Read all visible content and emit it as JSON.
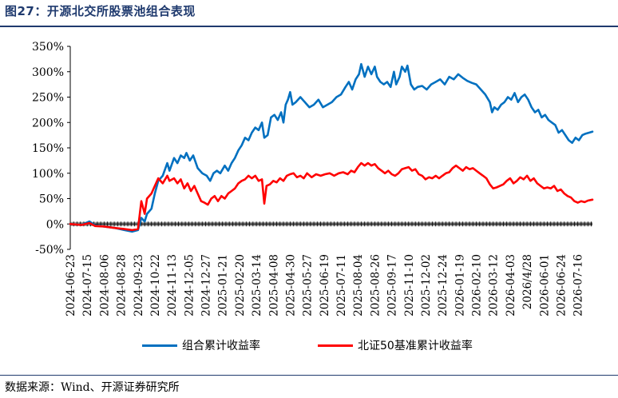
{
  "header": {
    "title": "图27：开源北交所股票池组合表现"
  },
  "footer": {
    "source": "数据来源：Wind、开源证券研究所"
  },
  "colors": {
    "portfolio": "#0070c0",
    "index": "#ff0000",
    "accent": "#1f3a6e"
  },
  "chart_data": {
    "type": "line",
    "title": "",
    "xlabel": "",
    "ylabel": "",
    "ylim": [
      -0.5,
      3.5
    ],
    "yticks": [
      -0.5,
      0,
      0.5,
      1.0,
      1.5,
      2.0,
      2.5,
      3.0,
      3.5
    ],
    "ytick_labels": [
      "-50%",
      "0%",
      "50%",
      "100%",
      "150%",
      "200%",
      "250%",
      "300%",
      "350%"
    ],
    "grid": false,
    "legend": "bottom",
    "x_tick_labels": [
      "2024-06-23",
      "2024-07-15",
      "2024-08-06",
      "2024-08-28",
      "2024-09-23",
      "2024-10-22",
      "2024-11-13",
      "2024-12-05",
      "2024-12-27",
      "2025-01-21",
      "2025-02-20",
      "2025-03-14",
      "2025-04-08",
      "2025-04-30",
      "2025-05-27",
      "2025-06-19",
      "2025-07-11",
      "2025-08-04",
      "2025-08-26",
      "2025-09-17",
      "2025-11-10",
      "2025-12-02",
      "2025-12-24",
      "2026-01-19",
      "2026-02-10",
      "2026-03-12",
      "2026-04-03",
      "2026/4/28",
      "2026-06-01",
      "2026-06-24",
      "2026-07-16"
    ],
    "x_tick_index": [
      0,
      15,
      30,
      45,
      60,
      75,
      90,
      105,
      120,
      135,
      150,
      165,
      180,
      195,
      210,
      225,
      240,
      255,
      270,
      285,
      300,
      315,
      330,
      345,
      360,
      375,
      390,
      405,
      420,
      435,
      450
    ],
    "x_max": 463,
    "series": [
      {
        "name": "组合累计收益率",
        "color": "#0070c0",
        "points": [
          [
            0,
            0.0
          ],
          [
            10,
            -0.02
          ],
          [
            17,
            0.05
          ],
          [
            22,
            -0.03
          ],
          [
            30,
            -0.05
          ],
          [
            40,
            -0.08
          ],
          [
            48,
            -0.12
          ],
          [
            55,
            -0.15
          ],
          [
            60,
            -0.12
          ],
          [
            63,
            0.12
          ],
          [
            66,
            0.05
          ],
          [
            68,
            0.2
          ],
          [
            72,
            0.3
          ],
          [
            75,
            0.6
          ],
          [
            78,
            0.85
          ],
          [
            82,
            0.95
          ],
          [
            86,
            1.2
          ],
          [
            88,
            1.05
          ],
          [
            92,
            1.3
          ],
          [
            95,
            1.2
          ],
          [
            98,
            1.35
          ],
          [
            101,
            1.3
          ],
          [
            103,
            1.4
          ],
          [
            106,
            1.25
          ],
          [
            109,
            1.35
          ],
          [
            113,
            1.1
          ],
          [
            117,
            1.0
          ],
          [
            121,
            0.95
          ],
          [
            124,
            0.85
          ],
          [
            127,
            1.0
          ],
          [
            130,
            1.05
          ],
          [
            133,
            1.0
          ],
          [
            137,
            1.15
          ],
          [
            140,
            1.05
          ],
          [
            143,
            1.2
          ],
          [
            146,
            1.3
          ],
          [
            149,
            1.45
          ],
          [
            152,
            1.55
          ],
          [
            155,
            1.7
          ],
          [
            158,
            1.65
          ],
          [
            161,
            1.8
          ],
          [
            164,
            1.9
          ],
          [
            167,
            1.85
          ],
          [
            170,
            2.0
          ],
          [
            172,
            1.7
          ],
          [
            175,
            1.75
          ],
          [
            178,
            2.1
          ],
          [
            181,
            2.15
          ],
          [
            184,
            2.05
          ],
          [
            187,
            2.2
          ],
          [
            189,
            2.0
          ],
          [
            191,
            2.35
          ],
          [
            193,
            2.45
          ],
          [
            195,
            2.6
          ],
          [
            197,
            2.35
          ],
          [
            200,
            2.4
          ],
          [
            204,
            2.5
          ],
          [
            208,
            2.4
          ],
          [
            212,
            2.3
          ],
          [
            216,
            2.35
          ],
          [
            220,
            2.45
          ],
          [
            224,
            2.3
          ],
          [
            228,
            2.35
          ],
          [
            232,
            2.4
          ],
          [
            236,
            2.5
          ],
          [
            240,
            2.55
          ],
          [
            244,
            2.7
          ],
          [
            247,
            2.8
          ],
          [
            250,
            2.65
          ],
          [
            253,
            2.85
          ],
          [
            256,
            2.95
          ],
          [
            258,
            3.15
          ],
          [
            261,
            2.9
          ],
          [
            264,
            3.1
          ],
          [
            267,
            2.95
          ],
          [
            270,
            3.1
          ],
          [
            272,
            2.9
          ],
          [
            275,
            2.8
          ],
          [
            278,
            2.75
          ],
          [
            281,
            2.8
          ],
          [
            284,
            2.7
          ],
          [
            287,
            3.0
          ],
          [
            289,
            2.75
          ],
          [
            292,
            2.9
          ],
          [
            294,
            3.1
          ],
          [
            297,
            3.0
          ],
          [
            299,
            3.12
          ],
          [
            302,
            2.75
          ],
          [
            305,
            2.65
          ],
          [
            308,
            2.7
          ],
          [
            312,
            2.72
          ],
          [
            316,
            2.65
          ],
          [
            320,
            2.75
          ],
          [
            324,
            2.8
          ],
          [
            328,
            2.85
          ],
          [
            332,
            2.75
          ],
          [
            336,
            2.9
          ],
          [
            340,
            2.85
          ],
          [
            344,
            2.95
          ],
          [
            348,
            2.88
          ],
          [
            352,
            2.82
          ],
          [
            356,
            2.78
          ],
          [
            360,
            2.75
          ],
          [
            364,
            2.65
          ],
          [
            368,
            2.55
          ],
          [
            372,
            2.4
          ],
          [
            374,
            2.2
          ],
          [
            376,
            2.3
          ],
          [
            379,
            2.25
          ],
          [
            382,
            2.35
          ],
          [
            385,
            2.4
          ],
          [
            388,
            2.5
          ],
          [
            391,
            2.45
          ],
          [
            394,
            2.58
          ],
          [
            397,
            2.4
          ],
          [
            400,
            2.5
          ],
          [
            403,
            2.55
          ],
          [
            406,
            2.45
          ],
          [
            409,
            2.3
          ],
          [
            412,
            2.2
          ],
          [
            415,
            2.25
          ],
          [
            418,
            2.1
          ],
          [
            421,
            2.15
          ],
          [
            424,
            2.05
          ],
          [
            427,
            2.0
          ],
          [
            430,
            1.95
          ],
          [
            433,
            1.8
          ],
          [
            436,
            1.85
          ],
          [
            439,
            1.75
          ],
          [
            442,
            1.65
          ],
          [
            445,
            1.6
          ],
          [
            448,
            1.7
          ],
          [
            451,
            1.65
          ],
          [
            454,
            1.75
          ],
          [
            457,
            1.78
          ],
          [
            460,
            1.8
          ],
          [
            463,
            1.82
          ]
        ]
      },
      {
        "name": "北证50基准累计收益率",
        "color": "#ff0000",
        "points": [
          [
            0,
            0.0
          ],
          [
            10,
            -0.02
          ],
          [
            17,
            0.02
          ],
          [
            22,
            -0.04
          ],
          [
            30,
            -0.05
          ],
          [
            40,
            -0.08
          ],
          [
            48,
            -0.1
          ],
          [
            55,
            -0.12
          ],
          [
            60,
            -0.1
          ],
          [
            63,
            0.45
          ],
          [
            66,
            0.2
          ],
          [
            68,
            0.5
          ],
          [
            72,
            0.6
          ],
          [
            75,
            0.75
          ],
          [
            78,
            0.9
          ],
          [
            82,
            0.8
          ],
          [
            86,
            0.95
          ],
          [
            88,
            0.85
          ],
          [
            92,
            0.9
          ],
          [
            95,
            0.8
          ],
          [
            98,
            0.88
          ],
          [
            101,
            0.7
          ],
          [
            104,
            0.8
          ],
          [
            107,
            0.65
          ],
          [
            110,
            0.75
          ],
          [
            113,
            0.6
          ],
          [
            116,
            0.45
          ],
          [
            119,
            0.42
          ],
          [
            122,
            0.38
          ],
          [
            125,
            0.5
          ],
          [
            128,
            0.55
          ],
          [
            131,
            0.45
          ],
          [
            134,
            0.55
          ],
          [
            137,
            0.5
          ],
          [
            140,
            0.6
          ],
          [
            143,
            0.65
          ],
          [
            146,
            0.7
          ],
          [
            149,
            0.8
          ],
          [
            152,
            0.85
          ],
          [
            155,
            0.88
          ],
          [
            158,
            0.95
          ],
          [
            161,
            0.9
          ],
          [
            164,
            0.95
          ],
          [
            167,
            0.85
          ],
          [
            170,
            0.88
          ],
          [
            172,
            0.4
          ],
          [
            174,
            0.75
          ],
          [
            177,
            0.78
          ],
          [
            180,
            0.85
          ],
          [
            183,
            0.82
          ],
          [
            186,
            0.9
          ],
          [
            189,
            0.85
          ],
          [
            192,
            0.95
          ],
          [
            195,
            0.98
          ],
          [
            198,
            1.0
          ],
          [
            201,
            0.92
          ],
          [
            204,
            0.95
          ],
          [
            207,
            0.9
          ],
          [
            210,
            1.0
          ],
          [
            214,
            0.92
          ],
          [
            218,
            0.98
          ],
          [
            222,
            0.95
          ],
          [
            226,
            0.98
          ],
          [
            230,
            1.0
          ],
          [
            234,
            0.95
          ],
          [
            238,
            1.0
          ],
          [
            242,
            1.02
          ],
          [
            246,
            0.98
          ],
          [
            249,
            1.05
          ],
          [
            252,
            1.02
          ],
          [
            255,
            1.12
          ],
          [
            258,
            1.2
          ],
          [
            261,
            1.15
          ],
          [
            264,
            1.2
          ],
          [
            267,
            1.15
          ],
          [
            270,
            1.18
          ],
          [
            273,
            1.1
          ],
          [
            276,
            1.05
          ],
          [
            279,
            1.0
          ],
          [
            282,
            1.05
          ],
          [
            285,
            0.98
          ],
          [
            288,
            0.95
          ],
          [
            291,
            1.0
          ],
          [
            294,
            1.08
          ],
          [
            297,
            1.1
          ],
          [
            300,
            1.12
          ],
          [
            303,
            1.05
          ],
          [
            306,
            1.08
          ],
          [
            309,
            0.98
          ],
          [
            312,
            0.95
          ],
          [
            315,
            0.88
          ],
          [
            318,
            0.92
          ],
          [
            321,
            0.9
          ],
          [
            324,
            0.95
          ],
          [
            327,
            0.9
          ],
          [
            330,
            0.95
          ],
          [
            333,
            1.0
          ],
          [
            336,
            1.02
          ],
          [
            339,
            1.1
          ],
          [
            342,
            1.15
          ],
          [
            345,
            1.1
          ],
          [
            348,
            1.05
          ],
          [
            351,
            1.12
          ],
          [
            354,
            1.08
          ],
          [
            357,
            1.1
          ],
          [
            360,
            1.05
          ],
          [
            363,
            1.0
          ],
          [
            366,
            0.95
          ],
          [
            369,
            0.9
          ],
          [
            372,
            0.78
          ],
          [
            375,
            0.7
          ],
          [
            378,
            0.72
          ],
          [
            381,
            0.75
          ],
          [
            384,
            0.78
          ],
          [
            387,
            0.85
          ],
          [
            390,
            0.9
          ],
          [
            393,
            0.8
          ],
          [
            396,
            0.85
          ],
          [
            399,
            0.92
          ],
          [
            402,
            0.88
          ],
          [
            405,
            0.95
          ],
          [
            408,
            0.85
          ],
          [
            411,
            0.9
          ],
          [
            414,
            0.8
          ],
          [
            417,
            0.75
          ],
          [
            420,
            0.7
          ],
          [
            423,
            0.72
          ],
          [
            426,
            0.7
          ],
          [
            429,
            0.75
          ],
          [
            432,
            0.65
          ],
          [
            435,
            0.68
          ],
          [
            438,
            0.6
          ],
          [
            441,
            0.55
          ],
          [
            444,
            0.52
          ],
          [
            447,
            0.45
          ],
          [
            450,
            0.42
          ],
          [
            453,
            0.45
          ],
          [
            456,
            0.43
          ],
          [
            459,
            0.46
          ],
          [
            463,
            0.48
          ]
        ]
      }
    ]
  }
}
